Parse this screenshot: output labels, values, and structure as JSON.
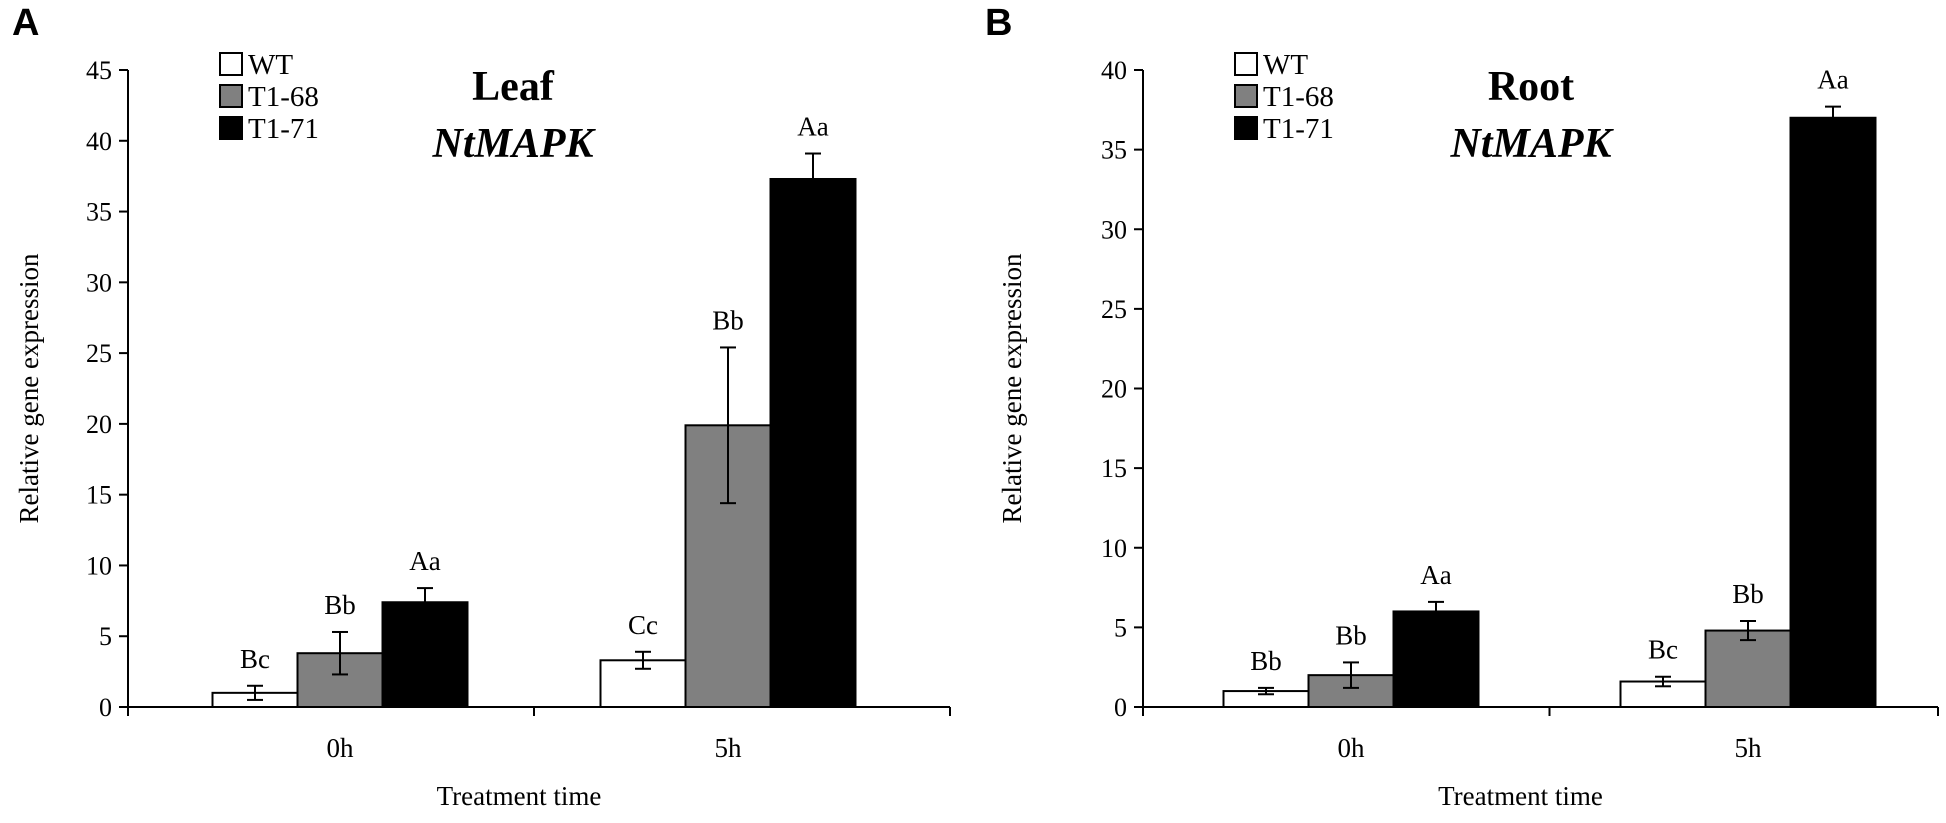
{
  "chart_data": [
    {
      "type": "bar",
      "panel_label": "A",
      "title": "Leaf",
      "subtitle": "NtMAPK",
      "xlabel": "Treatment time",
      "ylabel": "Relative gene expression",
      "categories": [
        "0h",
        "5h"
      ],
      "ylim": [
        0,
        45
      ],
      "yticks": [
        0,
        5,
        10,
        15,
        20,
        25,
        30,
        35,
        40,
        45
      ],
      "legend_position": "top-left",
      "series": [
        {
          "name": "WT",
          "color": "#ffffff",
          "values": [
            1.0,
            3.3
          ],
          "errors": [
            0.5,
            0.6
          ],
          "labels": [
            "Bc",
            "Cc"
          ]
        },
        {
          "name": "T1-68",
          "color": "#808080",
          "values": [
            3.8,
            19.9
          ],
          "errors": [
            1.5,
            5.5
          ],
          "labels": [
            "Bb",
            "Bb"
          ]
        },
        {
          "name": "T1-71",
          "color": "#000000",
          "values": [
            7.4,
            37.3
          ],
          "errors": [
            1.0,
            1.8
          ],
          "labels": [
            "Aa",
            "Aa"
          ]
        }
      ]
    },
    {
      "type": "bar",
      "panel_label": "B",
      "title": "Root",
      "subtitle": "NtMAPK",
      "xlabel": "Treatment time",
      "ylabel": "Relative gene expression",
      "categories": [
        "0h",
        "5h"
      ],
      "ylim": [
        0,
        40
      ],
      "yticks": [
        0,
        5,
        10,
        15,
        20,
        25,
        30,
        35,
        40
      ],
      "legend_position": "top-left",
      "series": [
        {
          "name": "WT",
          "color": "#ffffff",
          "values": [
            1.0,
            1.6
          ],
          "errors": [
            0.2,
            0.3
          ],
          "labels": [
            "Bb",
            "Bc"
          ]
        },
        {
          "name": "T1-68",
          "color": "#808080",
          "values": [
            2.0,
            4.8
          ],
          "errors": [
            0.8,
            0.6
          ],
          "labels": [
            "Bb",
            "Bb"
          ]
        },
        {
          "name": "T1-71",
          "color": "#000000",
          "values": [
            6.0,
            37.0
          ],
          "errors": [
            0.6,
            0.7
          ],
          "labels": [
            "Aa",
            "Aa"
          ]
        }
      ]
    }
  ]
}
